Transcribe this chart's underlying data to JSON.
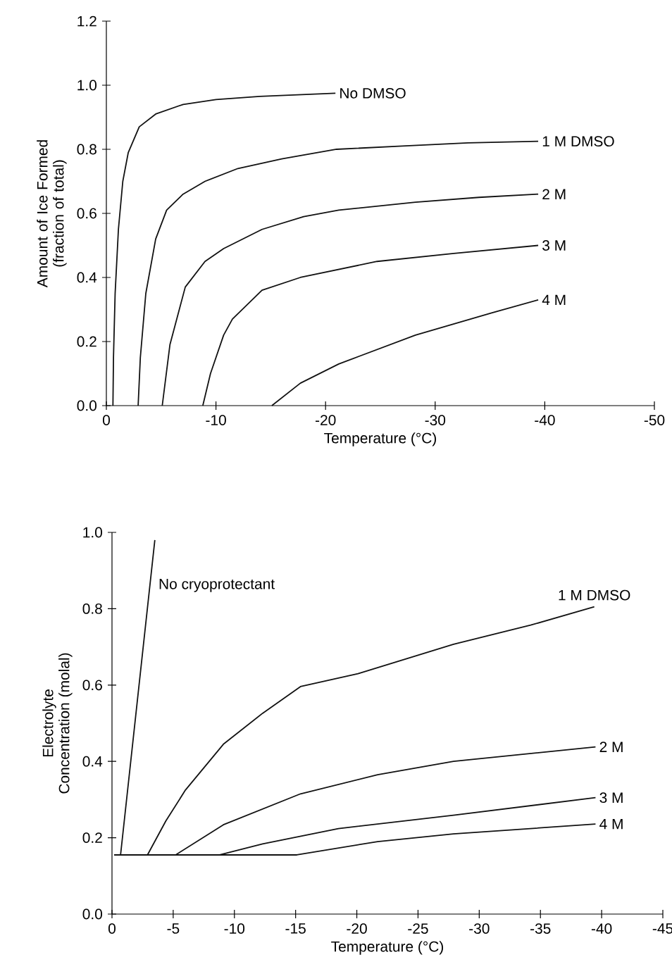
{
  "chart_data": [
    {
      "type": "line",
      "xlabel": "Temperature (°C)",
      "ylabel": "Amount of Ice Formed (fraction of total)",
      "xlim": [
        0,
        -50
      ],
      "ylim": [
        0,
        1.2
      ],
      "xticks": [
        0,
        -10,
        -20,
        -30,
        -40,
        -50
      ],
      "yticks": [
        {
          "value": 0,
          "label": "0.0"
        },
        {
          "value": 0.2,
          "label": "0.2"
        },
        {
          "value": 0.4,
          "label": "0.4"
        },
        {
          "value": 0.6,
          "label": "0.6"
        },
        {
          "value": 0.8,
          "label": "0.8"
        },
        {
          "value": 1.0,
          "label": "1.0"
        },
        {
          "value": 1.2,
          "label": "1.2"
        }
      ],
      "series": [
        {
          "name": "No DMSO",
          "color": "#111111",
          "x": [
            -0.6,
            -0.65,
            -0.8,
            -1.1,
            -1.5,
            -2.0,
            -3,
            -4.5,
            -7,
            -10,
            -14,
            -20.9
          ],
          "values": [
            0,
            0.15,
            0.35,
            0.55,
            0.7,
            0.79,
            0.87,
            0.91,
            0.94,
            0.955,
            0.965,
            0.975
          ]
        },
        {
          "name": "1 M DMSO",
          "color": "#111111",
          "x": [
            -2.9,
            -3.1,
            -3.6,
            -4.5,
            -5.5,
            -7,
            -9,
            -12,
            -16,
            -21,
            -27,
            -33,
            -39.4
          ],
          "values": [
            0,
            0.15,
            0.35,
            0.52,
            0.61,
            0.66,
            0.7,
            0.74,
            0.77,
            0.8,
            0.81,
            0.82,
            0.825
          ]
        },
        {
          "name": "2 M",
          "color": "#111111",
          "x": [
            -5.1,
            -5.8,
            -7.2,
            -9,
            -10.7,
            -14.2,
            -18,
            -21.2,
            -28.2,
            -34,
            -39.4
          ],
          "values": [
            0,
            0.19,
            0.37,
            0.45,
            0.49,
            0.55,
            0.59,
            0.61,
            0.635,
            0.65,
            0.66
          ]
        },
        {
          "name": "3 M",
          "color": "#111111",
          "x": [
            -8.8,
            -9.5,
            -10.7,
            -11.5,
            -14.2,
            -17.7,
            -24.7,
            -31.7,
            -39.4
          ],
          "values": [
            0,
            0.1,
            0.22,
            0.27,
            0.36,
            0.4,
            0.45,
            0.475,
            0.5
          ]
        },
        {
          "name": "4 M",
          "color": "#111111",
          "x": [
            -15.1,
            -17.7,
            -21.2,
            -28.2,
            -35.2,
            -39.4
          ],
          "values": [
            0,
            0.07,
            0.13,
            0.22,
            0.29,
            0.33
          ]
        }
      ]
    },
    {
      "type": "line",
      "xlabel": "Temperature (°C)",
      "ylabel": "Electrolyte Concentration (molal)",
      "xlim": [
        0,
        -45
      ],
      "ylim": [
        0,
        1.0
      ],
      "xticks": [
        0,
        -5,
        -10,
        -15,
        -20,
        -25,
        -30,
        -35,
        -40,
        -45
      ],
      "yticks": [
        {
          "value": 0,
          "label": "0.0"
        },
        {
          "value": 0.2,
          "label": "0.2"
        },
        {
          "value": 0.4,
          "label": "0.4"
        },
        {
          "value": 0.6,
          "label": "0.6"
        },
        {
          "value": 0.8,
          "label": "0.8"
        },
        {
          "value": 1.0,
          "label": "1.0"
        }
      ],
      "series": [
        {
          "name": "No cryoprotectant",
          "color": "#111111",
          "x": [
            -0.2,
            -0.7,
            -3.5
          ],
          "values": [
            0.155,
            0.155,
            0.98
          ]
        },
        {
          "name": "1 M DMSO",
          "color": "#111111",
          "x": [
            -0.2,
            -2.9,
            -4.4,
            -6,
            -9.1,
            -12.3,
            -15.4,
            -20.1,
            -27.9,
            -34.2,
            -39.4
          ],
          "values": [
            0.155,
            0.155,
            0.244,
            0.325,
            0.445,
            0.526,
            0.596,
            0.63,
            0.707,
            0.757,
            0.805
          ]
        },
        {
          "name": "2 M",
          "color": "#111111",
          "x": [
            -0.2,
            -5.2,
            -9.1,
            -15.4,
            -21.7,
            -27.9,
            -39.5
          ],
          "values": [
            0.155,
            0.155,
            0.234,
            0.315,
            0.365,
            0.4,
            0.438
          ]
        },
        {
          "name": "3 M",
          "color": "#111111",
          "x": [
            -0.2,
            -8.8,
            -12.3,
            -18.5,
            -27.9,
            -39.5
          ],
          "values": [
            0.155,
            0.155,
            0.184,
            0.224,
            0.259,
            0.305
          ]
        },
        {
          "name": "4 M",
          "color": "#111111",
          "x": [
            -0.2,
            -15.1,
            -21.7,
            -27.9,
            -39.5
          ],
          "values": [
            0.155,
            0.155,
            0.19,
            0.21,
            0.236
          ]
        }
      ]
    }
  ]
}
